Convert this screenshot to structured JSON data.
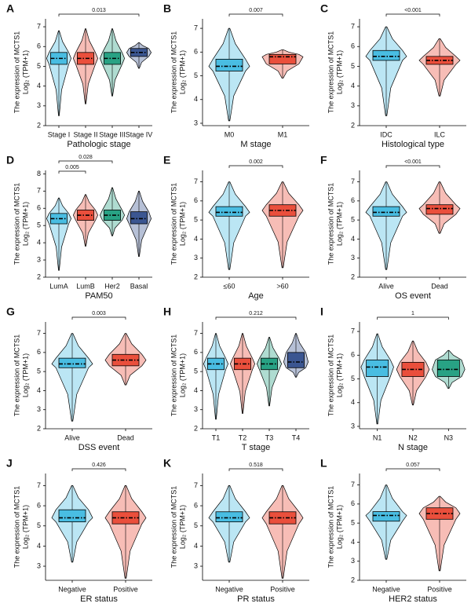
{
  "chart_data": [
    {
      "type": "box",
      "panel": "A",
      "xlabel": "Pathologic stage",
      "ylabel": [
        "The expression of MCTS1",
        "Log₂ (TPM+1)"
      ],
      "categories": [
        "Stage I",
        "Stage II",
        "Stage III",
        "Stage IV"
      ],
      "colors": [
        "#3db8e0",
        "#e8432f",
        "#1a9b7b",
        "#2d4a8a"
      ],
      "stats": [
        {
          "min": 2.5,
          "q1": 5.1,
          "median": 5.4,
          "q3": 5.7,
          "max": 6.8
        },
        {
          "min": 3.1,
          "q1": 5.1,
          "median": 5.4,
          "q3": 5.7,
          "max": 6.9
        },
        {
          "min": 3.5,
          "q1": 5.1,
          "median": 5.4,
          "q3": 5.7,
          "max": 6.9
        },
        {
          "min": 4.9,
          "q1": 5.5,
          "median": 5.7,
          "q3": 5.9,
          "max": 6.2
        }
      ],
      "ylim": [
        2,
        7.4
      ],
      "yticks": [
        2,
        3,
        4,
        5,
        6,
        7
      ],
      "brackets": [
        {
          "label": "0.013",
          "from": 0,
          "to": 3
        }
      ]
    },
    {
      "type": "box",
      "panel": "B",
      "xlabel": "M stage",
      "ylabel": [
        "The expression of MCTS1",
        "Log₂ (TPM+1)"
      ],
      "categories": [
        "M0",
        "M1"
      ],
      "colors": [
        "#3db8e0",
        "#e8432f"
      ],
      "stats": [
        {
          "min": 3.1,
          "q1": 5.2,
          "median": 5.4,
          "q3": 5.7,
          "max": 7.0
        },
        {
          "min": 4.9,
          "q1": 5.5,
          "median": 5.8,
          "q3": 5.9,
          "max": 6.1
        }
      ],
      "ylim": [
        2.9,
        7.4
      ],
      "yticks": [
        3,
        4,
        5,
        6,
        7
      ],
      "brackets": [
        {
          "label": "0.007",
          "from": 0,
          "to": 1
        }
      ]
    },
    {
      "type": "box",
      "panel": "C",
      "xlabel": "Histological type",
      "ylabel": [
        "The expression of MCTS1",
        "Log₂ (TPM+1)"
      ],
      "categories": [
        "IDC",
        "ILC"
      ],
      "colors": [
        "#3db8e0",
        "#e8432f"
      ],
      "stats": [
        {
          "min": 2.5,
          "q1": 5.3,
          "median": 5.5,
          "q3": 5.8,
          "max": 7.0
        },
        {
          "min": 3.5,
          "q1": 5.1,
          "median": 5.3,
          "q3": 5.5,
          "max": 6.4
        }
      ],
      "ylim": [
        2,
        7.4
      ],
      "yticks": [
        2,
        3,
        4,
        5,
        6,
        7
      ],
      "brackets": [
        {
          "label": "<0.001",
          "from": 0,
          "to": 1
        }
      ]
    },
    {
      "type": "box",
      "panel": "D",
      "xlabel": "PAM50",
      "ylabel": [
        "The expression of MCTS1",
        "Log₂ (TPM+1)"
      ],
      "categories": [
        "LumA",
        "LumB",
        "Her2",
        "Basal"
      ],
      "colors": [
        "#3db8e0",
        "#e8432f",
        "#1a9b7b",
        "#2d4a8a"
      ],
      "stats": [
        {
          "min": 2.4,
          "q1": 5.1,
          "median": 5.4,
          "q3": 5.7,
          "max": 6.6
        },
        {
          "min": 3.8,
          "q1": 5.3,
          "median": 5.6,
          "q3": 5.9,
          "max": 6.8
        },
        {
          "min": 4.4,
          "q1": 5.3,
          "median": 5.6,
          "q3": 5.9,
          "max": 7.2
        },
        {
          "min": 3.2,
          "q1": 5.1,
          "median": 5.4,
          "q3": 5.8,
          "max": 7.0
        }
      ],
      "ylim": [
        2,
        8.2
      ],
      "yticks": [
        2,
        3,
        4,
        5,
        6,
        7,
        8
      ],
      "brackets": [
        {
          "label": "0.005",
          "from": 0,
          "to": 1
        },
        {
          "label": "0.028",
          "from": 0,
          "to": 2
        }
      ]
    },
    {
      "type": "box",
      "panel": "E",
      "xlabel": "Age",
      "ylabel": [
        "The expression of MCTS1",
        "Log₂ (TPM+1)"
      ],
      "categories": [
        "≤60",
        ">60"
      ],
      "colors": [
        "#3db8e0",
        "#e8432f"
      ],
      "stats": [
        {
          "min": 2.4,
          "q1": 5.2,
          "median": 5.4,
          "q3": 5.7,
          "max": 7.0
        },
        {
          "min": 2.5,
          "q1": 5.2,
          "median": 5.5,
          "q3": 5.8,
          "max": 7.0
        }
      ],
      "ylim": [
        2,
        7.6
      ],
      "yticks": [
        2,
        3,
        4,
        5,
        6,
        7
      ],
      "brackets": [
        {
          "label": "0.002",
          "from": 0,
          "to": 1
        }
      ]
    },
    {
      "type": "box",
      "panel": "F",
      "xlabel": "OS event",
      "ylabel": [
        "The expression of MCTS1",
        "Log₂ (TPM+1)"
      ],
      "categories": [
        "Alive",
        "Dead"
      ],
      "colors": [
        "#3db8e0",
        "#e8432f"
      ],
      "stats": [
        {
          "min": 2.4,
          "q1": 5.2,
          "median": 5.4,
          "q3": 5.7,
          "max": 7.0
        },
        {
          "min": 4.3,
          "q1": 5.3,
          "median": 5.6,
          "q3": 5.8,
          "max": 7.0
        }
      ],
      "ylim": [
        2,
        7.6
      ],
      "yticks": [
        2,
        3,
        4,
        5,
        6,
        7
      ],
      "brackets": [
        {
          "label": "<0.001",
          "from": 0,
          "to": 1
        }
      ]
    },
    {
      "type": "box",
      "panel": "G",
      "xlabel": "DSS event",
      "ylabel": [
        "The expression of MCTS1",
        "Log₂ (TPM+1)"
      ],
      "categories": [
        "Alive",
        "Dead"
      ],
      "colors": [
        "#3db8e0",
        "#e8432f"
      ],
      "stats": [
        {
          "min": 2.4,
          "q1": 5.2,
          "median": 5.4,
          "q3": 5.7,
          "max": 7.0
        },
        {
          "min": 4.3,
          "q1": 5.3,
          "median": 5.6,
          "q3": 5.9,
          "max": 7.0
        }
      ],
      "ylim": [
        2,
        7.6
      ],
      "yticks": [
        2,
        3,
        4,
        5,
        6,
        7
      ],
      "brackets": [
        {
          "label": "0.003",
          "from": 0,
          "to": 1
        }
      ]
    },
    {
      "type": "box",
      "panel": "H",
      "xlabel": "T stage",
      "ylabel": [
        "The expression of MCTS1",
        "Log₂ (TPM+1)"
      ],
      "categories": [
        "T1",
        "T2",
        "T3",
        "T4"
      ],
      "colors": [
        "#3db8e0",
        "#e8432f",
        "#1a9b7b",
        "#2d4a8a"
      ],
      "stats": [
        {
          "min": 2.5,
          "q1": 5.1,
          "median": 5.4,
          "q3": 5.7,
          "max": 7.0
        },
        {
          "min": 2.8,
          "q1": 5.1,
          "median": 5.4,
          "q3": 5.7,
          "max": 7.0
        },
        {
          "min": 3.2,
          "q1": 5.1,
          "median": 5.4,
          "q3": 5.7,
          "max": 6.8
        },
        {
          "min": 4.7,
          "q1": 5.2,
          "median": 5.5,
          "q3": 6.0,
          "max": 7.0
        }
      ],
      "ylim": [
        2,
        7.6
      ],
      "yticks": [
        2,
        3,
        4,
        5,
        6,
        7
      ],
      "brackets": [
        {
          "label": "0.212",
          "from": 0,
          "to": 3
        }
      ]
    },
    {
      "type": "box",
      "panel": "I",
      "xlabel": "N stage",
      "ylabel": [
        "The expression of MCTS1",
        "Log₂ (TPM+1)"
      ],
      "categories": [
        "N1",
        "N2",
        "N3"
      ],
      "colors": [
        "#3db8e0",
        "#e8432f",
        "#1a9b7b"
      ],
      "stats": [
        {
          "min": 3.1,
          "q1": 5.1,
          "median": 5.5,
          "q3": 5.8,
          "max": 6.9
        },
        {
          "min": 3.9,
          "q1": 5.1,
          "median": 5.4,
          "q3": 5.7,
          "max": 6.6
        },
        {
          "min": 4.6,
          "q1": 5.1,
          "median": 5.4,
          "q3": 5.8,
          "max": 6.2
        }
      ],
      "ylim": [
        2.9,
        7.4
      ],
      "yticks": [
        3,
        4,
        5,
        6,
        7
      ],
      "brackets": [
        {
          "label": "1",
          "from": 0,
          "to": 2
        }
      ]
    },
    {
      "type": "box",
      "panel": "J",
      "xlabel": "ER status",
      "ylabel": [
        "The expression of MCTS1",
        "Log₂ (TPM+1)"
      ],
      "categories": [
        "Negative",
        "Positive"
      ],
      "colors": [
        "#3db8e0",
        "#e8432f"
      ],
      "stats": [
        {
          "min": 3.2,
          "q1": 5.2,
          "median": 5.4,
          "q3": 5.8,
          "max": 7.0
        },
        {
          "min": 2.4,
          "q1": 5.1,
          "median": 5.4,
          "q3": 5.7,
          "max": 7.0
        }
      ],
      "ylim": [
        2.3,
        7.6
      ],
      "yticks": [
        3,
        4,
        5,
        6,
        7
      ],
      "brackets": [
        {
          "label": "0.426",
          "from": 0,
          "to": 1
        }
      ]
    },
    {
      "type": "box",
      "panel": "K",
      "xlabel": "PR status",
      "ylabel": [
        "The expression of MCTS1",
        "Log₂ (TPM+1)"
      ],
      "categories": [
        "Negative",
        "Positive"
      ],
      "colors": [
        "#3db8e0",
        "#e8432f"
      ],
      "stats": [
        {
          "min": 3.2,
          "q1": 5.2,
          "median": 5.4,
          "q3": 5.7,
          "max": 7.0
        },
        {
          "min": 2.4,
          "q1": 5.1,
          "median": 5.4,
          "q3": 5.7,
          "max": 7.0
        }
      ],
      "ylim": [
        2.3,
        7.6
      ],
      "yticks": [
        3,
        4,
        5,
        6,
        7
      ],
      "brackets": [
        {
          "label": "0.518",
          "from": 0,
          "to": 1
        }
      ]
    },
    {
      "type": "box",
      "panel": "L",
      "xlabel": "HER2 status",
      "ylabel": [
        "The expression of MCTS1",
        "Log₂ (TPM+1)"
      ],
      "categories": [
        "Negative",
        "Positive"
      ],
      "colors": [
        "#3db8e0",
        "#e8432f"
      ],
      "stats": [
        {
          "min": 3.1,
          "q1": 5.1,
          "median": 5.4,
          "q3": 5.6,
          "max": 7.0
        },
        {
          "min": 2.5,
          "q1": 5.2,
          "median": 5.5,
          "q3": 5.8,
          "max": 6.4
        }
      ],
      "ylim": [
        2,
        7.6
      ],
      "yticks": [
        2,
        3,
        4,
        5,
        6,
        7
      ],
      "brackets": [
        {
          "label": "0.057",
          "from": 0,
          "to": 1
        }
      ]
    }
  ]
}
